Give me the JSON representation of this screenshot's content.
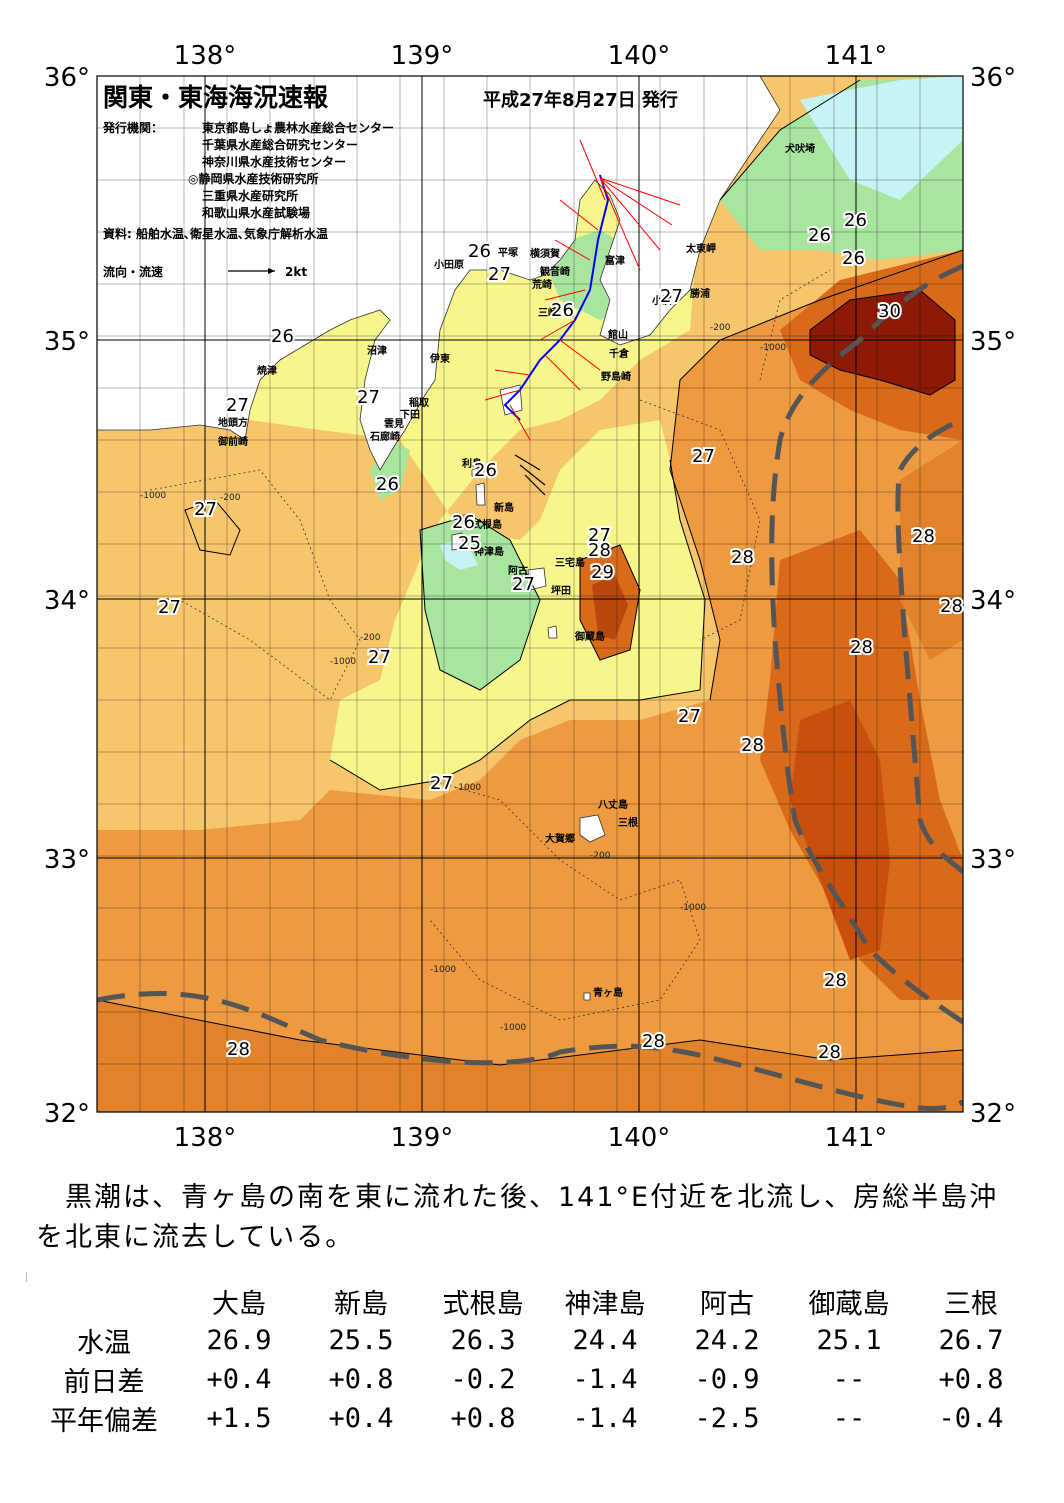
{
  "map": {
    "title": "関東・東海海況速報",
    "issue_date": "平成27年8月27日 発行",
    "publisher_label": "発行機関：",
    "publishers": [
      "東京都島しょ農林水産総合センター",
      "千葉県水産総合研究センター",
      "神奈川県水産技術センター",
      "◎静岡県水産技術研究所",
      "三重県水産研究所",
      "和歌山県水産試験場"
    ],
    "sources": "資料: 船舶水温､衛星水温､気象庁解析水温",
    "current_legend_label": "流向・流速",
    "current_legend_speed": "2kt",
    "lon_labels": [
      "138°",
      "139°",
      "140°",
      "141°"
    ],
    "lat_labels": [
      "36°",
      "35°",
      "34°",
      "33°",
      "32°"
    ],
    "place_names": [
      "犬吠埼",
      "太東岬",
      "勝浦",
      "小湊",
      "館山",
      "千倉",
      "野島崎",
      "富津",
      "横須賀",
      "観音崎",
      "荒崎",
      "三崎",
      "平塚",
      "小田原",
      "沼津",
      "伊東",
      "稲取",
      "下田",
      "雲見",
      "石廊崎",
      "焼津",
      "地頭方",
      "御前崎",
      "利島",
      "新島",
      "式根島",
      "神津島",
      "阿古",
      "坪田",
      "三宅島",
      "御蔵島",
      "八丈島",
      "三根",
      "大賀郷",
      "青ヶ島"
    ],
    "isotherm_labels": [
      "25",
      "26",
      "26",
      "26",
      "26",
      "26",
      "26",
      "26",
      "26",
      "26",
      "27",
      "27",
      "27",
      "27",
      "27",
      "27",
      "27",
      "27",
      "27",
      "27",
      "27",
      "27",
      "27",
      "28",
      "28",
      "28",
      "28",
      "28",
      "28",
      "28",
      "28",
      "28",
      "28",
      "28",
      "29",
      "30"
    ],
    "depth_labels": [
      "-1000",
      "-200"
    ],
    "colors": {
      "t24": "#c6f4f4",
      "t25": "#a8e6a0",
      "t26": "#f6f68c",
      "t27": "#f7c66c",
      "t28": "#ee9a40",
      "t29": "#d85f12",
      "t30": "#8c1a06",
      "land": "#ffffff",
      "kuroshio_axis": "#555555",
      "current_vectors": "#ff0000",
      "ship_track": "#0000ff"
    }
  },
  "summary": "　黒潮は、青ヶ島の南を東に流れた後、141°E付近を北流し、房総半島沖を北東に流去している。",
  "table": {
    "columns": [
      "大島",
      "新島",
      "式根島",
      "神津島",
      "阿古",
      "御蔵島",
      "三根"
    ],
    "rows": [
      {
        "label": "水温",
        "values": [
          "26.9",
          "25.5",
          "26.3",
          "24.4",
          "24.2",
          "25.1",
          "26.7"
        ]
      },
      {
        "label": "前日差",
        "values": [
          "+0.4",
          "+0.8",
          "-0.2",
          "-1.4",
          "-0.9",
          "--",
          "+0.8"
        ]
      },
      {
        "label": "平年偏差",
        "values": [
          "+1.5",
          "+0.4",
          "+0.8",
          "-1.4",
          "-2.5",
          "--",
          "-0.4"
        ]
      }
    ]
  }
}
